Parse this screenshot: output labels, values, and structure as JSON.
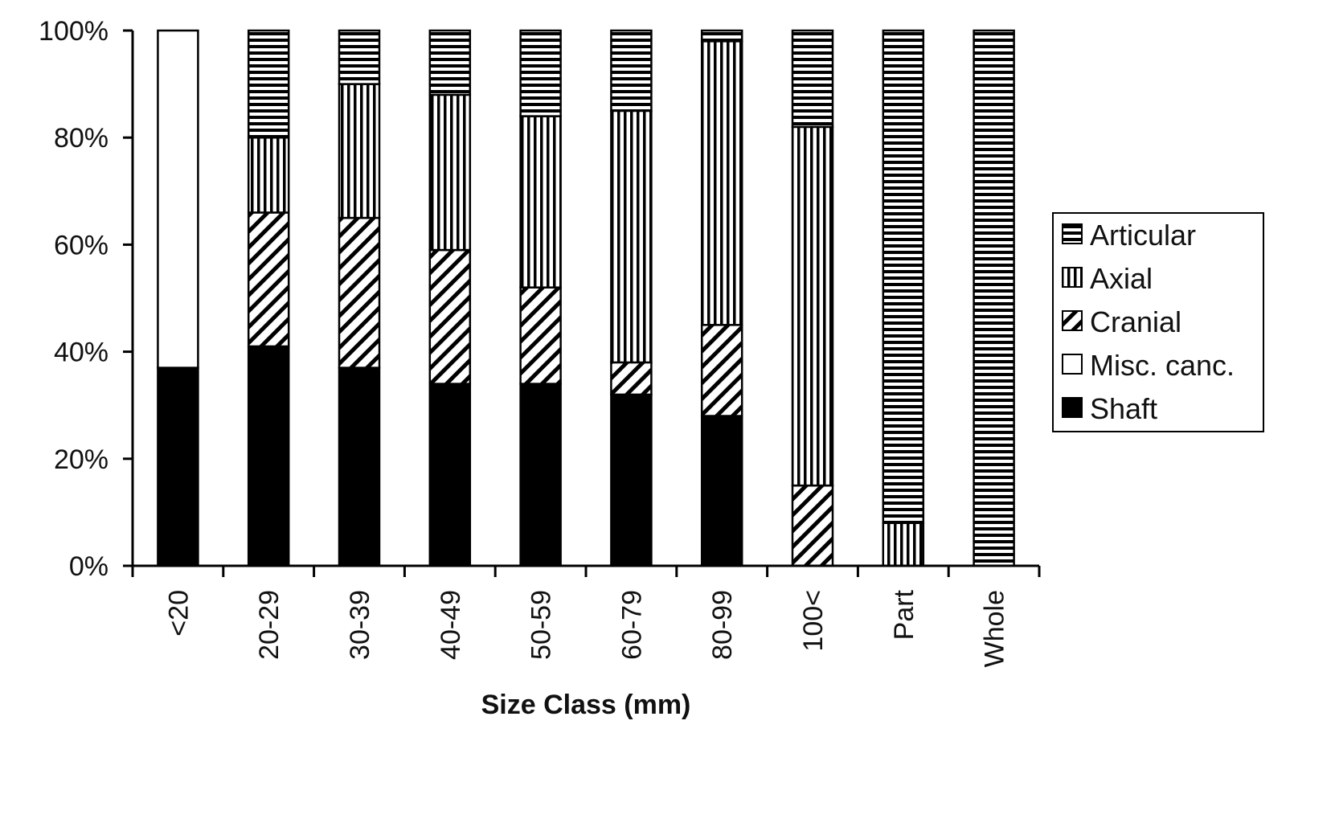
{
  "chart_data": {
    "type": "bar",
    "stacked": true,
    "normalized_percent": true,
    "title": "",
    "xlabel": "Size Class (mm)",
    "ylabel": "",
    "ylim": [
      0,
      100
    ],
    "y_ticks": [
      "0%",
      "20%",
      "40%",
      "60%",
      "80%",
      "100%"
    ],
    "grid": false,
    "legend_position": "right",
    "categories": [
      "<20",
      "20-29",
      "30-39",
      "40-49",
      "50-59",
      "60-79",
      "80-99",
      "100<",
      "Part",
      "Whole"
    ],
    "series": [
      {
        "name": "Shaft",
        "pattern": "solid",
        "values": [
          37,
          41,
          37,
          34,
          34,
          32,
          28,
          0,
          0,
          0
        ]
      },
      {
        "name": "Misc. canc.",
        "pattern": "empty",
        "values": [
          63,
          0,
          0,
          0,
          0,
          0,
          0,
          0,
          0,
          0
        ]
      },
      {
        "name": "Cranial",
        "pattern": "diagonal",
        "values": [
          0,
          25,
          28,
          25,
          18,
          6,
          17,
          15,
          0,
          0
        ]
      },
      {
        "name": "Axial",
        "pattern": "vertical",
        "values": [
          0,
          14,
          25,
          29,
          32,
          47,
          53,
          67,
          8,
          0
        ]
      },
      {
        "name": "Articular",
        "pattern": "horizontal",
        "values": [
          0,
          20,
          10,
          12,
          16,
          15,
          2,
          18,
          92,
          100
        ]
      }
    ],
    "legend_order": [
      "Articular",
      "Axial",
      "Cranial",
      "Misc. canc.",
      "Shaft"
    ]
  }
}
